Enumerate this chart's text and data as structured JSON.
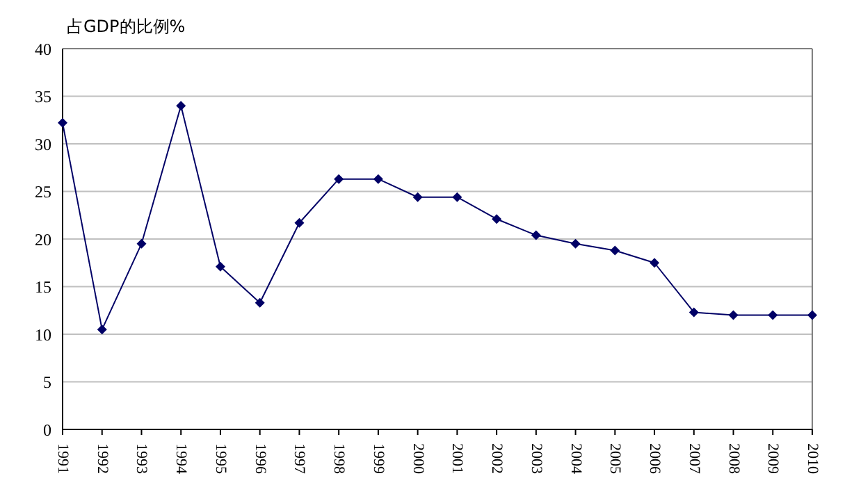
{
  "chart_data": {
    "type": "line",
    "ylabel": "占GDP的比例%",
    "categories": [
      "1991",
      "1992",
      "1993",
      "1994",
      "1995",
      "1996",
      "1997",
      "1998",
      "1999",
      "2000",
      "2001",
      "2002",
      "2003",
      "2004",
      "2005",
      "2006",
      "2007",
      "2008",
      "2009",
      "2010"
    ],
    "series": [
      {
        "color": "#000066",
        "values": [
          32.2,
          10.5,
          19.5,
          34,
          17.1,
          13.3,
          21.7,
          26.3,
          26.3,
          24.4,
          24.4,
          22.1,
          20.4,
          19.5,
          18.8,
          17.5,
          12.3,
          12.0,
          12.0,
          12.0
        ]
      }
    ],
    "ylim": [
      0,
      40
    ],
    "yticks": [
      0,
      5,
      10,
      15,
      20,
      25,
      30,
      35,
      40
    ],
    "grid": "y",
    "marker": "diamond",
    "line_style": "solid",
    "legend": false
  }
}
